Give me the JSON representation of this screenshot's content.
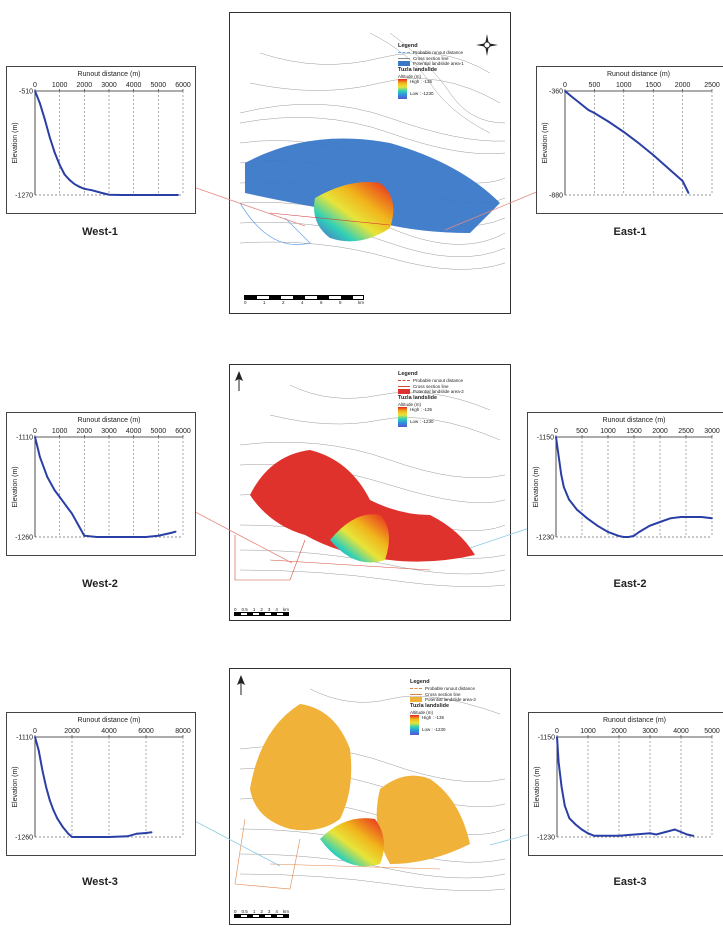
{
  "legend": {
    "title": "Legend",
    "probable": "Probable runout distance",
    "cross": "Cross section line",
    "tuzla": "Tuzla landslide",
    "altitude": "Altitude (m)",
    "high": "High : -135",
    "low": "Low : -1230"
  },
  "maps": [
    {
      "area_label": "Potential landslide area-1",
      "color": "#3a78c8",
      "scale_ticks": [
        "0",
        "1",
        "2",
        "4",
        "6",
        "8"
      ],
      "scale_unit": "km"
    },
    {
      "area_label": "Potential landslide area-2",
      "color": "#e0322c",
      "scale_ticks": [
        "0",
        "0.5",
        "1",
        "2",
        "3",
        "4"
      ],
      "scale_unit": "km"
    },
    {
      "area_label": "Potential landslide area-3",
      "color": "#f1b23a",
      "scale_ticks": [
        "0",
        "0.5",
        "1",
        "2",
        "3",
        "4"
      ],
      "scale_unit": "km"
    }
  ],
  "chart_data": [
    {
      "type": "line",
      "panel": "West-1",
      "xlabel": "Runout distance (m)",
      "ylabel": "Elevation (m)",
      "x_ticks": [
        "0",
        "1000",
        "2000",
        "3000",
        "4000",
        "5000",
        "6000"
      ],
      "y_ticks": [
        "-510",
        "-1270"
      ],
      "xlim": [
        0,
        6000
      ],
      "ylim": [
        -1270,
        -510
      ],
      "x": [
        0,
        200,
        400,
        600,
        800,
        1000,
        1200,
        1400,
        1600,
        1800,
        2000,
        2300,
        2700,
        3000,
        3500,
        4000,
        4500,
        5000,
        5500,
        5800
      ],
      "y": [
        -510,
        -600,
        -720,
        -850,
        -960,
        -1050,
        -1120,
        -1160,
        -1190,
        -1210,
        -1225,
        -1235,
        -1255,
        -1268,
        -1270,
        -1270,
        -1270,
        -1270,
        -1270,
        -1270
      ]
    },
    {
      "type": "line",
      "panel": "East-1",
      "xlabel": "Runout distance (m)",
      "ylabel": "Elevation (m)",
      "x_ticks": [
        "0",
        "500",
        "1000",
        "1500",
        "2000",
        "2500"
      ],
      "y_ticks": [
        "-360",
        "-880"
      ],
      "xlim": [
        0,
        2500
      ],
      "ylim": [
        -880,
        -360
      ],
      "x": [
        0,
        100,
        250,
        400,
        500,
        600,
        750,
        1000,
        1250,
        1500,
        1750,
        2000,
        2100
      ],
      "y": [
        -360,
        -385,
        -420,
        -455,
        -470,
        -488,
        -515,
        -565,
        -620,
        -680,
        -745,
        -810,
        -870
      ]
    },
    {
      "type": "line",
      "panel": "West-2",
      "xlabel": "Runout distance (m)",
      "ylabel": "Elevation (m)",
      "x_ticks": [
        "0",
        "1000",
        "2000",
        "3000",
        "4000",
        "5000",
        "6000"
      ],
      "y_ticks": [
        "-1110",
        "-1260"
      ],
      "xlim": [
        0,
        6000
      ],
      "ylim": [
        -1260,
        -1110
      ],
      "x": [
        0,
        100,
        200,
        300,
        500,
        800,
        1000,
        1200,
        1500,
        1800,
        2000,
        2500,
        3000,
        3500,
        4000,
        4500,
        5000,
        5500,
        5700
      ],
      "y": [
        -1110,
        -1125,
        -1140,
        -1150,
        -1170,
        -1190,
        -1200,
        -1210,
        -1225,
        -1245,
        -1258,
        -1260,
        -1260,
        -1260,
        -1260,
        -1260,
        -1258,
        -1254,
        -1252
      ]
    },
    {
      "type": "line",
      "panel": "East-2",
      "xlabel": "Runout distance (m)",
      "ylabel": "Elevation (m)",
      "x_ticks": [
        "0",
        "500",
        "1000",
        "1500",
        "2000",
        "2500",
        "3000"
      ],
      "y_ticks": [
        "-1150",
        "-1230"
      ],
      "xlim": [
        0,
        3000
      ],
      "ylim": [
        -1230,
        -1150
      ],
      "x": [
        0,
        50,
        100,
        150,
        250,
        400,
        600,
        800,
        1000,
        1200,
        1300,
        1400,
        1500,
        1600,
        1800,
        2000,
        2200,
        2400,
        2600,
        2800,
        3000
      ],
      "y": [
        -1150,
        -1165,
        -1180,
        -1190,
        -1200,
        -1208,
        -1215,
        -1221,
        -1226,
        -1229,
        -1230,
        -1230,
        -1229,
        -1226,
        -1221,
        -1218,
        -1215,
        -1214,
        -1214,
        -1214,
        -1215
      ]
    },
    {
      "type": "line",
      "panel": "West-3",
      "xlabel": "Runout distance (m)",
      "ylabel": "Elevation (m)",
      "x_ticks": [
        "0",
        "2000",
        "4000",
        "6000",
        "8000"
      ],
      "y_ticks": [
        "-1110",
        "-1260"
      ],
      "xlim": [
        0,
        8000
      ],
      "ylim": [
        -1260,
        -1110
      ],
      "x": [
        0,
        200,
        400,
        600,
        800,
        1000,
        1200,
        1500,
        1800,
        2000,
        3000,
        4000,
        5000,
        5500,
        6000,
        6300
      ],
      "y": [
        -1110,
        -1130,
        -1160,
        -1185,
        -1205,
        -1220,
        -1232,
        -1245,
        -1255,
        -1260,
        -1260,
        -1260,
        -1259,
        -1255,
        -1254,
        -1253
      ]
    },
    {
      "type": "line",
      "panel": "East-3",
      "xlabel": "Runout distance (m)",
      "ylabel": "Elevation (m)",
      "x_ticks": [
        "0",
        "1000",
        "2000",
        "3000",
        "4000",
        "5000"
      ],
      "y_ticks": [
        "-1150",
        "-1230"
      ],
      "xlim": [
        0,
        5000
      ],
      "ylim": [
        -1230,
        -1150
      ],
      "x": [
        0,
        50,
        150,
        250,
        400,
        600,
        800,
        1000,
        1200,
        1500,
        2000,
        2500,
        3000,
        3200,
        3500,
        3800,
        4000,
        4200,
        4400
      ],
      "y": [
        -1150,
        -1170,
        -1190,
        -1205,
        -1215,
        -1220,
        -1224,
        -1227,
        -1229,
        -1229,
        -1229,
        -1228,
        -1227,
        -1228,
        -1226,
        -1224,
        -1226,
        -1228,
        -1229
      ]
    }
  ],
  "panel_tags": [
    "West-1",
    "East-1",
    "West-2",
    "East-2",
    "West-3",
    "East-3"
  ]
}
